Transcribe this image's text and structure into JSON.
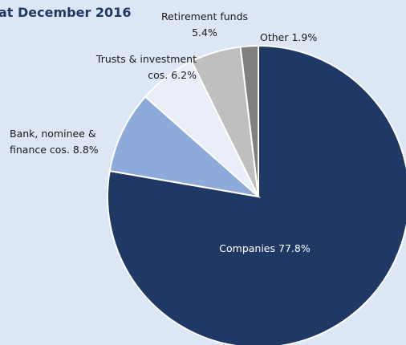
{
  "chart_data": {
    "type": "pie",
    "title": "at December 2016",
    "categories": [
      "Companies",
      "Bank, nominee & finance cos.",
      "Trusts & investment cos.",
      "Retirement funds",
      "Other"
    ],
    "values": [
      77.8,
      8.8,
      6.2,
      5.4,
      1.9
    ],
    "value_labels": [
      "77.8%",
      "8.8%",
      "6.2%",
      "5.4%",
      "1.9%"
    ],
    "colors": [
      "#1f3864",
      "#8eaadb",
      "#e9eef8",
      "#bfbfbf",
      "#808080"
    ]
  }
}
